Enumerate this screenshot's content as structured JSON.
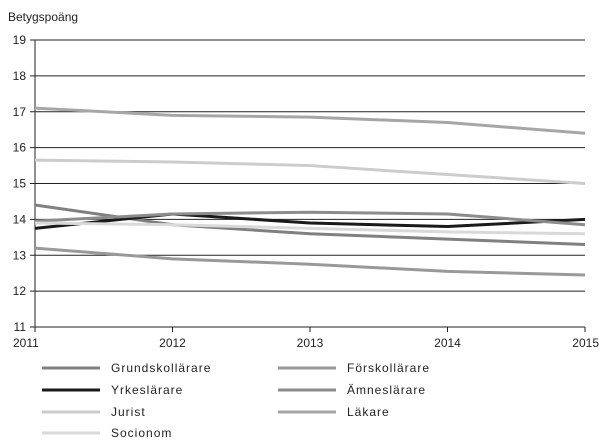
{
  "chart_data": {
    "type": "line",
    "ylabel": "Betygspoäng",
    "xlabel": "",
    "title": "",
    "x": [
      2011,
      2012,
      2013,
      2014,
      2015
    ],
    "ylim": [
      11,
      19
    ],
    "yticks": [
      11,
      12,
      13,
      14,
      15,
      16,
      17,
      18,
      19
    ],
    "grid": "horizontal",
    "legend_position": "bottom",
    "series": [
      {
        "name": "Grundskollärare",
        "values": [
          14.4,
          13.85,
          13.6,
          13.45,
          13.3
        ],
        "color": "#808080"
      },
      {
        "name": "Förskollärare",
        "values": [
          13.2,
          12.9,
          12.75,
          12.55,
          12.45
        ],
        "color": "#999999"
      },
      {
        "name": "Yrkeslärare",
        "values": [
          13.75,
          14.15,
          13.9,
          13.8,
          14.0
        ],
        "color": "#1a1a1a"
      },
      {
        "name": "Ämneslärare",
        "values": [
          13.95,
          14.15,
          14.2,
          14.15,
          13.85
        ],
        "color": "#8c8c8c"
      },
      {
        "name": "Jurist",
        "values": [
          15.65,
          15.6,
          15.5,
          15.25,
          15.0
        ],
        "color": "#cccccc"
      },
      {
        "name": "Läkare",
        "values": [
          17.1,
          16.9,
          16.85,
          16.7,
          16.4
        ],
        "color": "#a6a6a6"
      },
      {
        "name": "Socionom",
        "values": [
          13.9,
          13.85,
          13.75,
          13.65,
          13.6
        ],
        "color": "#d9d9d9"
      }
    ]
  }
}
